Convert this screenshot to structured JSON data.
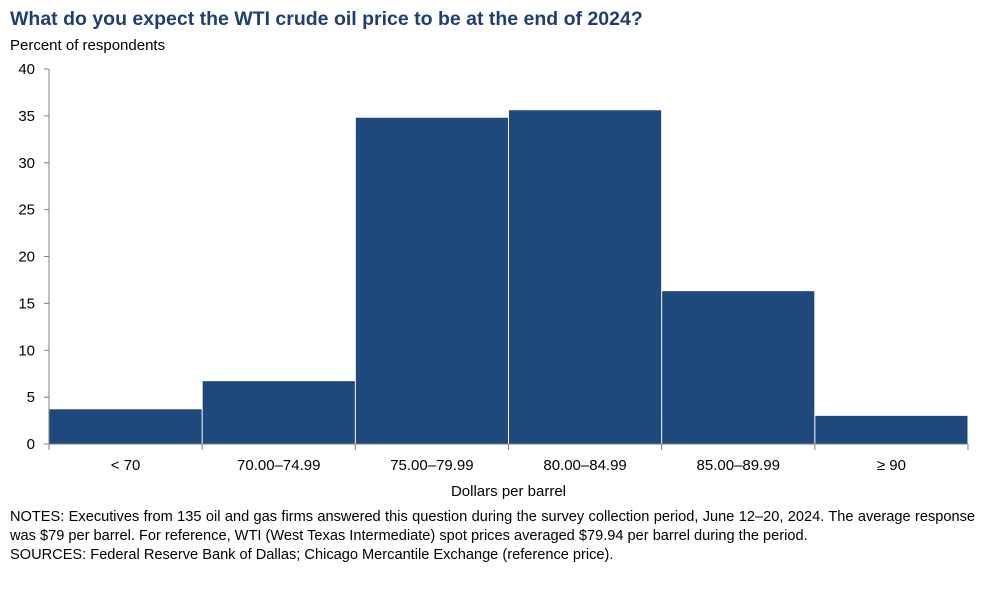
{
  "chart_data": {
    "type": "bar",
    "title": "What do you expect the WTI crude oil price to be at the end of 2024?",
    "ylabel": "Percent of respondents",
    "xlabel": "Dollars per barrel",
    "categories": [
      "< 70",
      "70.00–74.99",
      "75.00–79.99",
      "80.00–84.99",
      "85.00–89.99",
      "≥ 90"
    ],
    "values": [
      3.7,
      6.7,
      34.8,
      35.6,
      16.3,
      3.0
    ],
    "ylim": [
      0,
      40
    ],
    "yticks": [
      0,
      5,
      10,
      15,
      20,
      25,
      30,
      35,
      40
    ],
    "grid": false,
    "bar_color": "#1f487c",
    "title_color": "#1f3f74"
  },
  "notes": "NOTES: Executives from 135 oil and gas firms answered this question during the survey collection period, June 12–20, 2024. The average response was $79 per barrel. For reference, WTI (West Texas Intermediate) spot prices averaged $79.94 per barrel during the period.",
  "sources": "SOURCES: Federal Reserve Bank of Dallas; Chicago Mercantile Exchange (reference price)."
}
